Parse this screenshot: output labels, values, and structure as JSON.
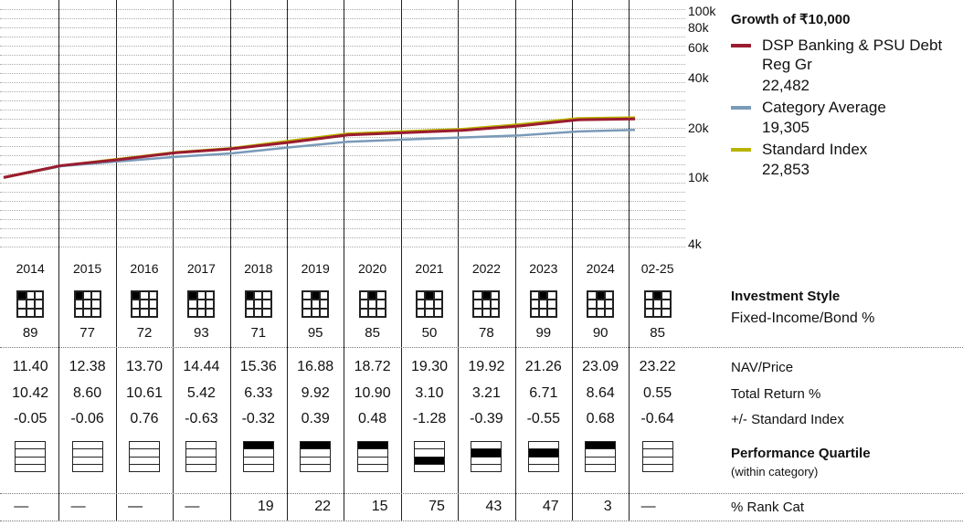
{
  "chart_data": {
    "type": "line",
    "title": "Growth of ₹10,000",
    "yscale": "log",
    "ylim": [
      4000,
      100000
    ],
    "yticks": [
      "100k",
      "80k",
      "60k",
      "40k",
      "20k",
      "10k",
      "4k"
    ],
    "ytick_values": [
      100000,
      80000,
      60000,
      40000,
      20000,
      10000,
      4000
    ],
    "x": [
      "2014",
      "2015",
      "2016",
      "2017",
      "2018",
      "2019",
      "2020",
      "2021",
      "2022",
      "2023",
      "2024",
      "02-25"
    ],
    "series": [
      {
        "name": "DSP Banking & PSU Debt Reg Gr",
        "color": "#9b1b30",
        "end_value": "22,482",
        "values": [
          10000,
          11800,
          12800,
          14100,
          14900,
          16300,
          18000,
          18600,
          19200,
          20400,
          22200,
          22482
        ]
      },
      {
        "name": "Category Average",
        "color": "#7a9ab8",
        "end_value": "19,305",
        "values": [
          10000,
          11700,
          12500,
          13300,
          14000,
          15200,
          16400,
          16900,
          17400,
          17900,
          18900,
          19305
        ]
      },
      {
        "name": "Standard Index",
        "color": "#b8b400",
        "end_value": "22,853",
        "values": [
          10000,
          11750,
          12900,
          14150,
          15000,
          16600,
          18300,
          18900,
          19500,
          20800,
          22600,
          22853
        ]
      }
    ]
  },
  "years": [
    "2014",
    "2015",
    "2016",
    "2017",
    "2018",
    "2019",
    "2020",
    "2021",
    "2022",
    "2023",
    "2024",
    "02-25"
  ],
  "investment_style": {
    "label": "Investment Style",
    "sublabel": "Fixed-Income/Bond %",
    "style_cells": [
      0,
      0,
      0,
      0,
      0,
      1,
      1,
      1,
      1,
      1,
      1,
      1
    ],
    "bond_pct": [
      "89",
      "77",
      "72",
      "93",
      "71",
      "95",
      "85",
      "50",
      "78",
      "99",
      "90",
      "85"
    ]
  },
  "table": {
    "nav": {
      "label": "NAV/Price",
      "values": [
        "11.40",
        "12.38",
        "13.70",
        "14.44",
        "15.36",
        "16.88",
        "18.72",
        "19.30",
        "19.92",
        "21.26",
        "23.09",
        "23.22"
      ]
    },
    "total_return": {
      "label": "Total Return %",
      "values": [
        "10.42",
        "8.60",
        "10.61",
        "5.42",
        "6.33",
        "9.92",
        "10.90",
        "3.10",
        "3.21",
        "6.71",
        "8.64",
        "0.55"
      ]
    },
    "vs_index": {
      "label": "+/- Standard Index",
      "values": [
        "-0.05",
        "-0.06",
        "0.76",
        "-0.63",
        "-0.32",
        "0.39",
        "0.48",
        "-1.28",
        "-0.39",
        "-0.55",
        "0.68",
        "-0.64"
      ]
    }
  },
  "performance_quartile": {
    "label": "Performance Quartile",
    "sublabel": "(within category)",
    "quartiles": [
      0,
      0,
      0,
      0,
      1,
      1,
      1,
      3,
      2,
      2,
      1,
      0
    ]
  },
  "rank_cat": {
    "label": "% Rank Cat",
    "values": [
      "—",
      "—",
      "—",
      "—",
      "19",
      "22",
      "15",
      "75",
      "43",
      "47",
      "3",
      "—"
    ]
  }
}
